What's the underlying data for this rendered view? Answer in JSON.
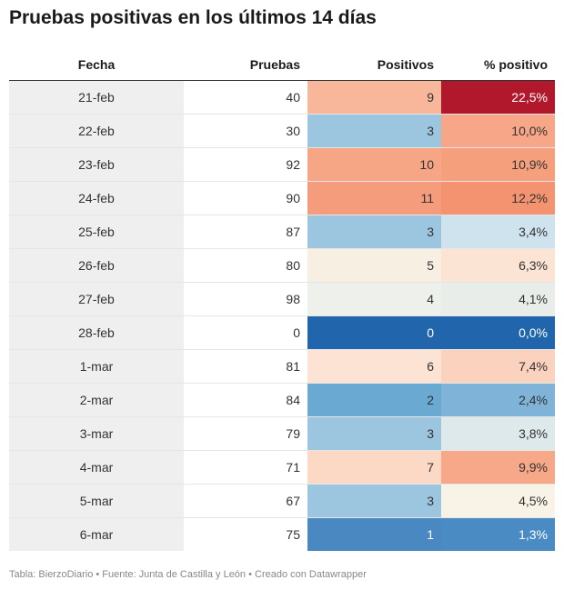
{
  "title": "Pruebas positivas en los últimos 14 días",
  "footer": "Tabla: BierzoDiario • Fuente: Junta de Castilla y León • Creado con Datawrapper",
  "chart_data": {
    "type": "table",
    "columns": [
      "Fecha",
      "Pruebas",
      "Positivos",
      "% positivo"
    ],
    "rows": [
      {
        "fecha": "21-feb",
        "pruebas": "40",
        "positivos": "9",
        "pct": "22,5%",
        "pos_val": 9,
        "pct_val": 22.5
      },
      {
        "fecha": "22-feb",
        "pruebas": "30",
        "positivos": "3",
        "pct": "10,0%",
        "pos_val": 3,
        "pct_val": 10.0
      },
      {
        "fecha": "23-feb",
        "pruebas": "92",
        "positivos": "10",
        "pct": "10,9%",
        "pos_val": 10,
        "pct_val": 10.9
      },
      {
        "fecha": "24-feb",
        "pruebas": "90",
        "positivos": "11",
        "pct": "12,2%",
        "pos_val": 11,
        "pct_val": 12.2
      },
      {
        "fecha": "25-feb",
        "pruebas": "87",
        "positivos": "3",
        "pct": "3,4%",
        "pos_val": 3,
        "pct_val": 3.4
      },
      {
        "fecha": "26-feb",
        "pruebas": "80",
        "positivos": "5",
        "pct": "6,3%",
        "pos_val": 5,
        "pct_val": 6.3
      },
      {
        "fecha": "27-feb",
        "pruebas": "98",
        "positivos": "4",
        "pct": "4,1%",
        "pos_val": 4,
        "pct_val": 4.1
      },
      {
        "fecha": "28-feb",
        "pruebas": "0",
        "positivos": "0",
        "pct": "0,0%",
        "pos_val": 0,
        "pct_val": 0.0
      },
      {
        "fecha": "1-mar",
        "pruebas": "81",
        "positivos": "6",
        "pct": "7,4%",
        "pos_val": 6,
        "pct_val": 7.4
      },
      {
        "fecha": "2-mar",
        "pruebas": "84",
        "positivos": "2",
        "pct": "2,4%",
        "pos_val": 2,
        "pct_val": 2.4
      },
      {
        "fecha": "3-mar",
        "pruebas": "79",
        "positivos": "3",
        "pct": "3,8%",
        "pos_val": 3,
        "pct_val": 3.8
      },
      {
        "fecha": "4-mar",
        "pruebas": "71",
        "positivos": "7",
        "pct": "9,9%",
        "pos_val": 7,
        "pct_val": 9.9
      },
      {
        "fecha": "5-mar",
        "pruebas": "67",
        "positivos": "3",
        "pct": "4,5%",
        "pos_val": 3,
        "pct_val": 4.5
      },
      {
        "fecha": "6-mar",
        "pruebas": "75",
        "positivos": "1",
        "pct": "1,3%",
        "pos_val": 1,
        "pct_val": 1.3
      }
    ]
  },
  "colors": {
    "fecha_bg": "#efefef",
    "positivos_scale": [
      {
        "v": 0,
        "c": "#2166ac"
      },
      {
        "v": 1,
        "c": "#4a88c2"
      },
      {
        "v": 2,
        "c": "#6aa9d1"
      },
      {
        "v": 3,
        "c": "#9cc5e0"
      },
      {
        "v": 4,
        "c": "#eef0eb"
      },
      {
        "v": 5,
        "c": "#f8efe3"
      },
      {
        "v": 6,
        "c": "#fde3d3"
      },
      {
        "v": 7,
        "c": "#fcd9c4"
      },
      {
        "v": 9,
        "c": "#f8b79a"
      },
      {
        "v": 10,
        "c": "#f6a585"
      },
      {
        "v": 11,
        "c": "#f49c7c"
      }
    ],
    "pct_scale": [
      {
        "v": 0,
        "c": "#2166ac"
      },
      {
        "v": 1.3,
        "c": "#4a8bc3"
      },
      {
        "v": 2.4,
        "c": "#7fb3d7"
      },
      {
        "v": 3.4,
        "c": "#cfe3ef"
      },
      {
        "v": 4.5,
        "c": "#f8f3e6"
      },
      {
        "v": 6.3,
        "c": "#fbe4d4"
      },
      {
        "v": 9.9,
        "c": "#f7a888"
      },
      {
        "v": 12.2,
        "c": "#f3936f"
      },
      {
        "v": 22.5,
        "c": "#b2182b"
      }
    ],
    "text_dark": "#333333",
    "text_light": "#ffffff"
  }
}
